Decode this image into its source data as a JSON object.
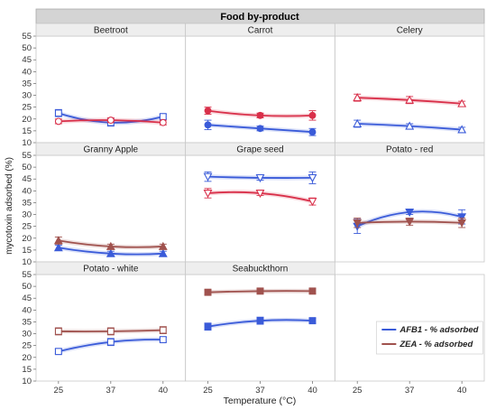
{
  "chart_data": {
    "type": "line",
    "facet_header": "Food by-product",
    "ylabel": "mycotoxin adsorbed (%)",
    "xlabel": "Temperature (°C)",
    "x_categories": [
      "25",
      "37",
      "40"
    ],
    "y_range": [
      10,
      55
    ],
    "y_ticks": [
      10,
      15,
      20,
      25,
      30,
      35,
      40,
      45,
      50,
      55
    ],
    "legend": {
      "position": "bottom-right",
      "entries": [
        {
          "label": "AFB1 - % adsorbed",
          "color": "#3a5bd9"
        },
        {
          "label": "ZEA - % adsorbed",
          "color": "#a0524e"
        }
      ]
    },
    "panels": [
      {
        "title": "Beetroot",
        "series": [
          {
            "name": "AFB1 - % adsorbed",
            "color": "#3a5bd9",
            "marker": "square-open",
            "values": [
              22.5,
              18.5,
              21.0
            ],
            "errors": [
              1.5,
              1.5,
              1.0
            ]
          },
          {
            "name": "ZEA - % adsorbed",
            "color": "#d9304a",
            "marker": "circle-open",
            "values": [
              19.0,
              19.5,
              18.5
            ],
            "errors": [
              1.0,
              1.0,
              1.0
            ]
          }
        ]
      },
      {
        "title": "Carrot",
        "series": [
          {
            "name": "AFB1 - % adsorbed",
            "color": "#3a5bd9",
            "marker": "circle",
            "values": [
              17.5,
              16.0,
              14.5
            ],
            "errors": [
              2.0,
              1.0,
              1.5
            ]
          },
          {
            "name": "ZEA - % adsorbed",
            "color": "#d9304a",
            "marker": "circle",
            "values": [
              23.5,
              21.5,
              21.5
            ],
            "errors": [
              1.5,
              1.0,
              2.0
            ]
          }
        ]
      },
      {
        "title": "Celery",
        "series": [
          {
            "name": "AFB1 - % adsorbed",
            "color": "#3a5bd9",
            "marker": "triangle-open",
            "values": [
              18.0,
              17.0,
              15.5
            ],
            "errors": [
              1.5,
              1.0,
              1.0
            ]
          },
          {
            "name": "ZEA - % adsorbed",
            "color": "#d9304a",
            "marker": "triangle-open",
            "values": [
              29.0,
              28.0,
              26.5
            ],
            "errors": [
              1.5,
              1.5,
              1.0
            ]
          }
        ]
      },
      {
        "title": "Granny Apple",
        "series": [
          {
            "name": "AFB1 - % adsorbed",
            "color": "#3a5bd9",
            "marker": "triangle",
            "values": [
              16.0,
              13.5,
              13.5
            ],
            "errors": [
              1.0,
              1.0,
              1.0
            ]
          },
          {
            "name": "ZEA - % adsorbed",
            "color": "#a0524e",
            "marker": "triangle",
            "values": [
              19.0,
              16.5,
              16.5
            ],
            "errors": [
              1.5,
              1.0,
              1.0
            ]
          }
        ]
      },
      {
        "title": "Grape seed",
        "series": [
          {
            "name": "AFB1 - % adsorbed",
            "color": "#3a5bd9",
            "marker": "triangle-down-open",
            "values": [
              46.0,
              45.5,
              45.5
            ],
            "errors": [
              2.0,
              1.0,
              2.5
            ]
          },
          {
            "name": "ZEA - % adsorbed",
            "color": "#d9304a",
            "marker": "triangle-down-open",
            "values": [
              39.0,
              39.0,
              35.5
            ],
            "errors": [
              2.0,
              1.0,
              1.5
            ]
          }
        ]
      },
      {
        "title": "Potato - red",
        "series": [
          {
            "name": "AFB1 - % adsorbed",
            "color": "#3a5bd9",
            "marker": "triangle-down",
            "values": [
              25.0,
              31.0,
              29.0
            ],
            "errors": [
              3.0,
              1.0,
              3.0
            ]
          },
          {
            "name": "ZEA - % adsorbed",
            "color": "#a0524e",
            "marker": "triangle-down",
            "values": [
              26.5,
              27.0,
              26.5
            ],
            "errors": [
              2.0,
              1.5,
              2.0
            ]
          }
        ]
      },
      {
        "title": "Potato - white",
        "series": [
          {
            "name": "AFB1 - % adsorbed",
            "color": "#3a5bd9",
            "marker": "square-open",
            "values": [
              22.5,
              26.5,
              27.5
            ],
            "errors": [
              1.0,
              1.5,
              1.0
            ]
          },
          {
            "name": "ZEA - % adsorbed",
            "color": "#a0524e",
            "marker": "square-open",
            "values": [
              31.0,
              31.0,
              31.5
            ],
            "errors": [
              1.5,
              1.5,
              1.5
            ]
          }
        ]
      },
      {
        "title": "Seabuckthorn",
        "series": [
          {
            "name": "AFB1 - % adsorbed",
            "color": "#3a5bd9",
            "marker": "square",
            "values": [
              33.0,
              35.5,
              35.5
            ],
            "errors": [
              1.5,
              1.5,
              1.0
            ]
          },
          {
            "name": "ZEA - % adsorbed",
            "color": "#a0524e",
            "marker": "square",
            "values": [
              47.5,
              48.0,
              48.0
            ],
            "errors": [
              1.0,
              1.0,
              1.0
            ]
          }
        ]
      }
    ]
  }
}
